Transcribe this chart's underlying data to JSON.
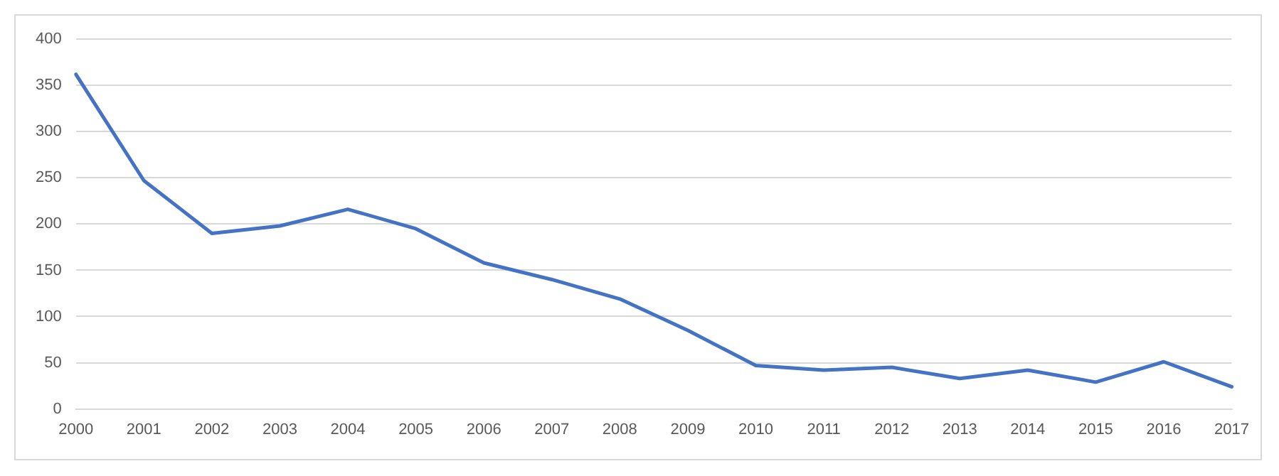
{
  "chart_data": {
    "type": "line",
    "categories": [
      "2000",
      "2001",
      "2002",
      "2003",
      "2004",
      "2005",
      "2006",
      "2007",
      "2008",
      "2009",
      "2010",
      "2011",
      "2012",
      "2013",
      "2014",
      "2015",
      "2016",
      "2017"
    ],
    "series": [
      {
        "color": "#4472c4",
        "values": [
          362,
          247,
          190,
          198,
          216,
          195,
          158,
          140,
          119,
          85,
          47,
          42,
          45,
          33,
          42,
          29,
          51,
          24
        ]
      }
    ],
    "ylim": [
      0,
      400
    ],
    "yticks": [
      0,
      50,
      100,
      150,
      200,
      250,
      300,
      350,
      400
    ],
    "grid": "y",
    "legend": false,
    "marker": "none",
    "line_style": "solid"
  }
}
